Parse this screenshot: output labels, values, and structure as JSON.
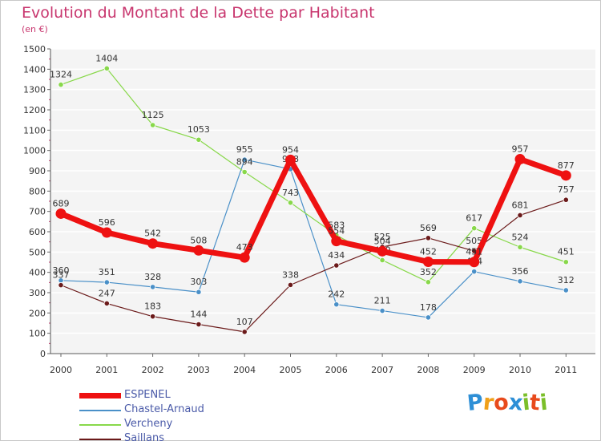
{
  "title": "Evolution du Montant de la Dette par Habitant",
  "unit": "(en €)",
  "logo": {
    "text": "Proxiti",
    "letters": [
      "P",
      "r",
      "o",
      "x",
      "i",
      "t",
      "i"
    ],
    "colors": [
      "#2e8fd6",
      "#f0a019",
      "#e84a1c",
      "#2e8fd6",
      "#7bbf2a",
      "#e84a1c",
      "#7bbf2a"
    ]
  },
  "chart_data": {
    "type": "line",
    "x": [
      "2000",
      "2001",
      "2002",
      "2003",
      "2004",
      "2005",
      "2006",
      "2007",
      "2008",
      "2009",
      "2010",
      "2011"
    ],
    "ylim": [
      0,
      1500
    ],
    "yticks": [
      0,
      100,
      200,
      300,
      400,
      500,
      600,
      700,
      800,
      900,
      1000,
      1100,
      1200,
      1300,
      1400,
      1500
    ],
    "grid": "horizontal",
    "legend_position": "bottom-left",
    "series": [
      {
        "name": "ESPENEL",
        "color": "#ee1111",
        "values": [
          689,
          596,
          542,
          508,
          473,
          954,
          554,
          504,
          452,
          451,
          957,
          877
        ],
        "labels": [
          "689",
          "596",
          "542",
          "508",
          "473",
          "954",
          "554",
          "504",
          "452",
          "451",
          "957",
          "877"
        ]
      },
      {
        "name": "Chastel-Arnaud",
        "color": "#4a90c8",
        "values": [
          360,
          351,
          328,
          303,
          955,
          908,
          242,
          211,
          178,
          404,
          356,
          312
        ],
        "labels": [
          "360",
          "351",
          "328",
          "303",
          "955",
          "908",
          "242",
          "211",
          "178",
          "404",
          "356",
          "312"
        ]
      },
      {
        "name": "Vercheny",
        "color": "#88d84a",
        "values": [
          1324,
          1404,
          1125,
          1053,
          894,
          743,
          583,
          460,
          352,
          617,
          524,
          451
        ],
        "labels": [
          "1324",
          "1404",
          "1125",
          "1053",
          "894",
          "743",
          "583",
          "460",
          "352",
          "617",
          "524",
          "451"
        ]
      },
      {
        "name": "Saillans",
        "color": "#6b1a1a",
        "values": [
          337,
          247,
          183,
          144,
          107,
          338,
          434,
          525,
          569,
          505,
          681,
          757
        ],
        "labels": [
          "337",
          "247",
          "183",
          "144",
          "107",
          "338",
          "434",
          "525",
          "569",
          "505",
          "681",
          "757"
        ]
      }
    ]
  }
}
